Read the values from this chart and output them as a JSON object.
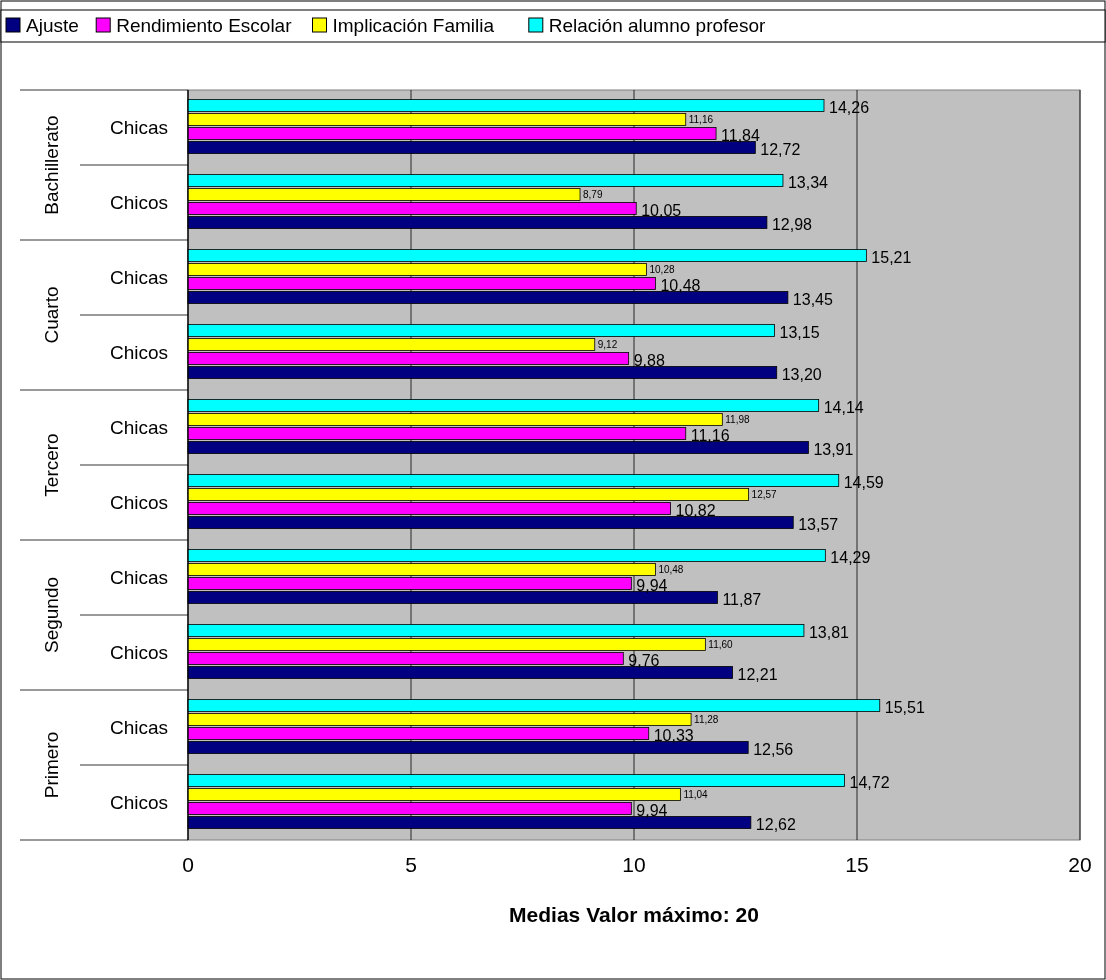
{
  "chart_data": {
    "type": "bar",
    "orientation": "horizontal",
    "xlabel": "Medias Valor máximo: 20",
    "categories": [
      "Chicas",
      "Chicos",
      "Chicas",
      "Chicos",
      "Chicas",
      "Chicos",
      "Chicas",
      "Chicos",
      "Chicas",
      "Chicos"
    ],
    "annotations": [
      "Bachillerato",
      "Cuarto",
      "Tercero",
      "Segundo",
      "Primero"
    ],
    "series": [
      {
        "name": "Ajuste",
        "color": "#000080",
        "values": [
          12.72,
          12.98,
          13.45,
          13.2,
          13.91,
          13.57,
          11.87,
          12.21,
          12.56,
          12.62
        ],
        "value_labels": [
          "12,72",
          "12,98",
          "13,45",
          "13,20",
          "13,91",
          "13,57",
          "11,87",
          "12,21",
          "12,56",
          "12,62"
        ]
      },
      {
        "name": "Rendimiento Escolar",
        "color": "#ff00ff",
        "values": [
          11.84,
          10.05,
          10.48,
          9.88,
          11.16,
          10.82,
          9.94,
          9.76,
          10.33,
          9.94
        ],
        "value_labels": [
          "11,84",
          "10,05",
          "10,48",
          "9,88",
          "11,16",
          "10,82",
          "9,94",
          "9,76",
          "10,33",
          "9,94"
        ]
      },
      {
        "name": "Implicación Familia",
        "color": "#ffff00",
        "values": [
          11.16,
          8.79,
          10.28,
          9.12,
          11.98,
          12.57,
          10.48,
          11.6,
          11.28,
          11.04
        ],
        "value_labels": [
          "11,16",
          "8,79",
          "10,28",
          "9,12",
          "11,98",
          "12,57",
          "10,48",
          "11,60",
          "11,28",
          "11,04"
        ]
      },
      {
        "name": "Relación alumno profesor",
        "color": "#00ffff",
        "values": [
          14.26,
          13.34,
          15.21,
          13.15,
          14.14,
          14.59,
          14.29,
          13.81,
          15.51,
          14.72
        ],
        "value_labels": [
          "14,26",
          "13,34",
          "15,21",
          "13,15",
          "14,14",
          "14,59",
          "14,29",
          "13,81",
          "15,51",
          "14,72"
        ]
      }
    ],
    "xlim": [
      0,
      20
    ],
    "xticks": [
      0,
      5,
      10,
      15,
      20
    ],
    "grid": "x",
    "legend": "top"
  }
}
